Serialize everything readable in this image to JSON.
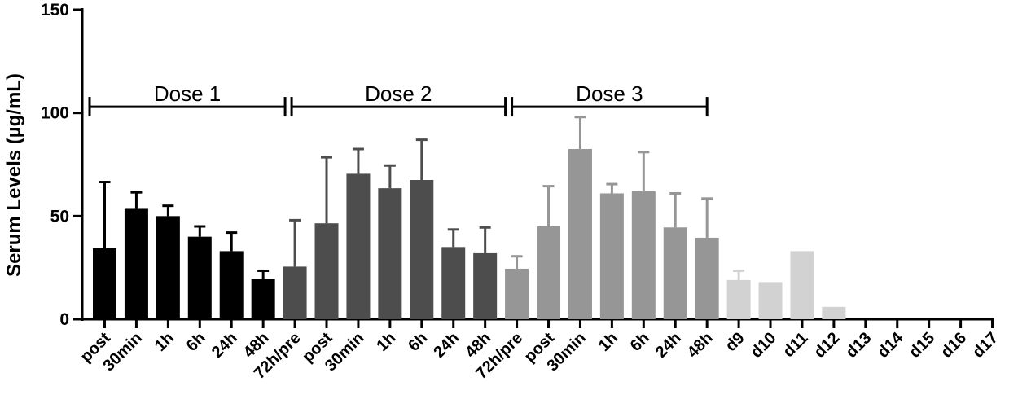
{
  "chart_data": {
    "type": "bar",
    "ylabel": "Serum Levels (µg/mL)",
    "ylim": [
      0,
      150
    ],
    "yticks": [
      "0",
      "50",
      "100",
      "150"
    ],
    "categories": [
      "post",
      "30min",
      "1h",
      "6h",
      "24h",
      "48h",
      "72h/pre",
      "post",
      "30min",
      "1h",
      "6h",
      "24h",
      "48h",
      "72h/pre",
      "post",
      "30min",
      "1h",
      "6h",
      "24h",
      "48h",
      "d9",
      "d10",
      "d11",
      "d12",
      "d13",
      "d14",
      "d15",
      "d16",
      "d17"
    ],
    "values": [
      34.5,
      53.5,
      50,
      40,
      33,
      19.5,
      25.5,
      46.5,
      70.5,
      63.5,
      67.5,
      35,
      32,
      24.5,
      45,
      82.5,
      61,
      62,
      44.5,
      39.5,
      19,
      18,
      33,
      6,
      0,
      0,
      0,
      0,
      0
    ],
    "errors": [
      32,
      8,
      5,
      5,
      9,
      4,
      22.5,
      32,
      12,
      11,
      19.5,
      8.5,
      12.5,
      6,
      19.5,
      15.5,
      4.5,
      19,
      16.5,
      19,
      4.5,
      null,
      null,
      null,
      null,
      null,
      null,
      null,
      null
    ],
    "bar_colors": [
      "#000000",
      "#000000",
      "#000000",
      "#000000",
      "#000000",
      "#000000",
      "#4d4d4d",
      "#4d4d4d",
      "#4d4d4d",
      "#4d4d4d",
      "#4d4d4d",
      "#4d4d4d",
      "#4d4d4d",
      "#969696",
      "#969696",
      "#969696",
      "#969696",
      "#969696",
      "#969696",
      "#969696",
      "#d2d2d2",
      "#d2d2d2",
      "#d2d2d2",
      "#d2d2d2",
      "#d2d2d2",
      "#d2d2d2",
      "#d2d2d2",
      "#d2d2d2",
      "#d2d2d2"
    ],
    "doses": [
      {
        "label": "Dose 1",
        "y": 103,
        "from_index": 0,
        "to_index": 6
      },
      {
        "label": "Dose 2",
        "y": 103,
        "from_index": 6,
        "to_index": 13
      },
      {
        "label": "Dose 3",
        "y": 103,
        "from_index": 13,
        "to_index": 19
      }
    ],
    "grid": false,
    "legend": "none"
  }
}
